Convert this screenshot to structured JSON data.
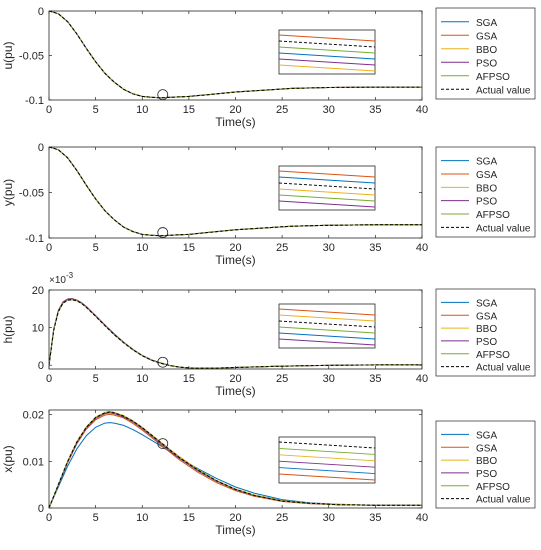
{
  "series_style": [
    {
      "name": "SGA",
      "color": "#0072BD",
      "dash": ""
    },
    {
      "name": "GSA",
      "color": "#D95319",
      "dash": ""
    },
    {
      "name": "BBO",
      "color": "#EDB120",
      "dash": ""
    },
    {
      "name": "PSO",
      "color": "#7E2F8E",
      "dash": ""
    },
    {
      "name": "AFPSO",
      "color": "#77AC30",
      "dash": ""
    },
    {
      "name": "Actual value",
      "color": "#000000",
      "dash": "3,2"
    }
  ],
  "chart_data": [
    {
      "type": "line",
      "ylabel": "u(pu)",
      "xlabel": "Time(s)",
      "xlim": [
        0,
        40
      ],
      "ylim": [
        -0.1,
        0
      ],
      "xticks": [
        "0",
        "5",
        "10",
        "15",
        "20",
        "25",
        "30",
        "35",
        "40"
      ],
      "yticks": [
        {
          "v": 0,
          "t": "0"
        },
        {
          "v": -0.05,
          "t": "-0.05"
        },
        {
          "v": -0.1,
          "t": "-0.1"
        }
      ],
      "exponent": "",
      "legend": [
        "SGA",
        "GSA",
        "BBO",
        "PSO",
        "AFPSO",
        "Actual value"
      ],
      "x": [
        0,
        1,
        2,
        3,
        4,
        5,
        6,
        7,
        8,
        9,
        10,
        11,
        12,
        13,
        14,
        15,
        17,
        20,
        23,
        26,
        30,
        35,
        40
      ],
      "series": [
        {
          "name": "SGA",
          "values": [
            0,
            -0.003,
            -0.012,
            -0.026,
            -0.042,
            -0.057,
            -0.07,
            -0.08,
            -0.088,
            -0.093,
            -0.096,
            -0.097,
            -0.0975,
            -0.097,
            -0.0965,
            -0.096,
            -0.094,
            -0.091,
            -0.089,
            -0.087,
            -0.086,
            -0.0855,
            -0.0855
          ]
        },
        {
          "name": "GSA",
          "values": [
            0,
            -0.003,
            -0.012,
            -0.026,
            -0.042,
            -0.057,
            -0.07,
            -0.08,
            -0.088,
            -0.093,
            -0.096,
            -0.097,
            -0.0975,
            -0.097,
            -0.0965,
            -0.096,
            -0.094,
            -0.091,
            -0.089,
            -0.087,
            -0.086,
            -0.0855,
            -0.0855
          ]
        },
        {
          "name": "BBO",
          "values": [
            0,
            -0.003,
            -0.012,
            -0.026,
            -0.042,
            -0.057,
            -0.07,
            -0.08,
            -0.088,
            -0.093,
            -0.096,
            -0.097,
            -0.0975,
            -0.097,
            -0.0965,
            -0.096,
            -0.094,
            -0.091,
            -0.089,
            -0.087,
            -0.086,
            -0.0855,
            -0.0855
          ]
        },
        {
          "name": "PSO",
          "values": [
            0,
            -0.003,
            -0.012,
            -0.026,
            -0.042,
            -0.057,
            -0.07,
            -0.08,
            -0.088,
            -0.093,
            -0.096,
            -0.097,
            -0.0975,
            -0.097,
            -0.0965,
            -0.096,
            -0.094,
            -0.091,
            -0.089,
            -0.087,
            -0.086,
            -0.0855,
            -0.0855
          ]
        },
        {
          "name": "AFPSO",
          "values": [
            0,
            -0.003,
            -0.012,
            -0.026,
            -0.042,
            -0.057,
            -0.07,
            -0.08,
            -0.088,
            -0.093,
            -0.096,
            -0.097,
            -0.0975,
            -0.097,
            -0.0965,
            -0.096,
            -0.094,
            -0.091,
            -0.089,
            -0.087,
            -0.086,
            -0.0855,
            -0.0855
          ]
        },
        {
          "name": "Actual value",
          "values": [
            0,
            -0.003,
            -0.012,
            -0.026,
            -0.042,
            -0.057,
            -0.07,
            -0.08,
            -0.088,
            -0.093,
            -0.096,
            -0.097,
            -0.0975,
            -0.097,
            -0.0965,
            -0.096,
            -0.094,
            -0.091,
            -0.089,
            -0.087,
            -0.086,
            -0.0855,
            -0.0855
          ]
        }
      ],
      "marker": {
        "x": 12.2,
        "y": -0.094
      },
      "inset_order": [
        "GSA",
        "Actual value",
        "AFPSO",
        "SGA",
        "PSO",
        "BBO"
      ]
    },
    {
      "type": "line",
      "ylabel": "y(pu)",
      "xlabel": "Time(s)",
      "xlim": [
        0,
        40
      ],
      "ylim": [
        -0.1,
        0
      ],
      "xticks": [
        "0",
        "5",
        "10",
        "15",
        "20",
        "25",
        "30",
        "35",
        "40"
      ],
      "yticks": [
        {
          "v": 0,
          "t": "0"
        },
        {
          "v": -0.05,
          "t": "-0.05"
        },
        {
          "v": -0.1,
          "t": "-0.1"
        }
      ],
      "exponent": "",
      "legend": [
        "SGA",
        "GSA",
        "BBO",
        "PSO",
        "AFPSO",
        "Actual value"
      ],
      "x": [
        0,
        1,
        2,
        3,
        4,
        5,
        6,
        7,
        8,
        9,
        10,
        11,
        12,
        13,
        14,
        15,
        17,
        20,
        23,
        26,
        30,
        35,
        40
      ],
      "series": [
        {
          "name": "SGA",
          "values": [
            0,
            -0.003,
            -0.012,
            -0.026,
            -0.042,
            -0.057,
            -0.07,
            -0.08,
            -0.088,
            -0.093,
            -0.096,
            -0.097,
            -0.0975,
            -0.097,
            -0.0965,
            -0.096,
            -0.094,
            -0.091,
            -0.089,
            -0.087,
            -0.086,
            -0.0855,
            -0.0855
          ]
        },
        {
          "name": "GSA",
          "values": [
            0,
            -0.003,
            -0.012,
            -0.026,
            -0.042,
            -0.057,
            -0.07,
            -0.08,
            -0.088,
            -0.093,
            -0.096,
            -0.097,
            -0.0975,
            -0.097,
            -0.0965,
            -0.096,
            -0.094,
            -0.091,
            -0.089,
            -0.087,
            -0.086,
            -0.0855,
            -0.0855
          ]
        },
        {
          "name": "BBO",
          "values": [
            0,
            -0.003,
            -0.012,
            -0.026,
            -0.042,
            -0.057,
            -0.07,
            -0.08,
            -0.088,
            -0.093,
            -0.096,
            -0.097,
            -0.0975,
            -0.097,
            -0.0965,
            -0.096,
            -0.094,
            -0.091,
            -0.089,
            -0.087,
            -0.086,
            -0.0855,
            -0.0855
          ]
        },
        {
          "name": "PSO",
          "values": [
            0,
            -0.003,
            -0.012,
            -0.026,
            -0.042,
            -0.057,
            -0.07,
            -0.08,
            -0.088,
            -0.093,
            -0.096,
            -0.097,
            -0.0975,
            -0.097,
            -0.0965,
            -0.096,
            -0.094,
            -0.091,
            -0.089,
            -0.087,
            -0.086,
            -0.0855,
            -0.0855
          ]
        },
        {
          "name": "AFPSO",
          "values": [
            0,
            -0.003,
            -0.012,
            -0.026,
            -0.042,
            -0.057,
            -0.07,
            -0.08,
            -0.088,
            -0.093,
            -0.096,
            -0.097,
            -0.0975,
            -0.097,
            -0.0965,
            -0.096,
            -0.094,
            -0.091,
            -0.089,
            -0.087,
            -0.086,
            -0.0855,
            -0.0855
          ]
        },
        {
          "name": "Actual value",
          "values": [
            0,
            -0.003,
            -0.012,
            -0.026,
            -0.042,
            -0.057,
            -0.07,
            -0.08,
            -0.088,
            -0.093,
            -0.096,
            -0.097,
            -0.0975,
            -0.097,
            -0.0965,
            -0.096,
            -0.094,
            -0.091,
            -0.089,
            -0.087,
            -0.086,
            -0.0855,
            -0.0855
          ]
        }
      ],
      "marker": {
        "x": 12.2,
        "y": -0.094
      },
      "inset_order": [
        "GSA",
        "SGA",
        "Actual value",
        "BBO",
        "AFPSO",
        "PSO"
      ]
    },
    {
      "type": "line",
      "ylabel": "h(pu)",
      "xlabel": "Time(s)",
      "xlim": [
        0,
        40
      ],
      "ylim": [
        -1,
        20
      ],
      "xticks": [
        "0",
        "5",
        "10",
        "15",
        "20",
        "25",
        "30",
        "35",
        "40"
      ],
      "yticks": [
        {
          "v": 0,
          "t": "0"
        },
        {
          "v": 10,
          "t": "10"
        },
        {
          "v": 20,
          "t": "20"
        }
      ],
      "exponent": "-3",
      "legend": [
        "SGA",
        "GSA",
        "BBO",
        "PSO",
        "AFPSO",
        "Actual value"
      ],
      "x": [
        0,
        0.5,
        1,
        1.5,
        2,
        2.5,
        3,
        3.5,
        4,
        5,
        6,
        7,
        8,
        9,
        10,
        11,
        12,
        13,
        14,
        15,
        16,
        18,
        20,
        24,
        28,
        32,
        36,
        40
      ],
      "series": [
        {
          "name": "SGA",
          "values": [
            0,
            9.5,
            14.5,
            16.8,
            17.6,
            17.7,
            17.3,
            16.6,
            15.6,
            13.2,
            10.7,
            8.3,
            6.1,
            4.2,
            2.6,
            1.4,
            0.6,
            -0.1,
            -0.5,
            -0.7,
            -0.8,
            -0.75,
            -0.6,
            -0.3,
            -0.1,
            0.05,
            0.1,
            0.1
          ]
        },
        {
          "name": "GSA",
          "values": [
            0,
            9.5,
            14.5,
            16.8,
            17.6,
            17.7,
            17.3,
            16.6,
            15.6,
            13.2,
            10.7,
            8.3,
            6.1,
            4.2,
            2.6,
            1.4,
            0.6,
            -0.1,
            -0.5,
            -0.7,
            -0.8,
            -0.75,
            -0.6,
            -0.3,
            -0.1,
            0.05,
            0.1,
            0.1
          ]
        },
        {
          "name": "BBO",
          "values": [
            0,
            9.5,
            14.5,
            16.8,
            17.6,
            17.7,
            17.3,
            16.6,
            15.6,
            13.2,
            10.7,
            8.3,
            6.1,
            4.2,
            2.6,
            1.4,
            0.6,
            -0.1,
            -0.5,
            -0.7,
            -0.8,
            -0.75,
            -0.6,
            -0.3,
            -0.1,
            0.05,
            0.1,
            0.1
          ]
        },
        {
          "name": "PSO",
          "values": [
            0,
            9.5,
            14.5,
            16.8,
            17.6,
            17.7,
            17.3,
            16.6,
            15.6,
            13.2,
            10.7,
            8.3,
            6.1,
            4.2,
            2.6,
            1.4,
            0.6,
            -0.1,
            -0.5,
            -0.7,
            -0.8,
            -0.75,
            -0.6,
            -0.3,
            -0.1,
            0.05,
            0.1,
            0.1
          ]
        },
        {
          "name": "AFPSO",
          "values": [
            0,
            9.3,
            14.2,
            16.5,
            17.3,
            17.4,
            17.1,
            16.4,
            15.4,
            13.0,
            10.5,
            8.1,
            6.0,
            4.1,
            2.5,
            1.3,
            0.5,
            -0.1,
            -0.5,
            -0.7,
            -0.8,
            -0.75,
            -0.6,
            -0.3,
            -0.1,
            0.05,
            0.1,
            0.1
          ]
        },
        {
          "name": "Actual value",
          "values": [
            0,
            9.3,
            14.2,
            16.5,
            17.3,
            17.4,
            17.1,
            16.4,
            15.4,
            13.0,
            10.5,
            8.1,
            6.0,
            4.1,
            2.5,
            1.3,
            0.5,
            -0.1,
            -0.5,
            -0.7,
            -0.8,
            -0.75,
            -0.6,
            -0.3,
            -0.1,
            0.05,
            0.1,
            0.1
          ]
        }
      ],
      "marker": {
        "x": 12.2,
        "y": 0.8
      },
      "inset_order": [
        "GSA",
        "BBO",
        "Actual value",
        "AFPSO",
        "SGA",
        "PSO"
      ]
    },
    {
      "type": "line",
      "ylabel": "x(pu)",
      "xlabel": "Time(s)",
      "xlim": [
        0,
        40
      ],
      "ylim": [
        0,
        0.021
      ],
      "xticks": [
        "0",
        "5",
        "10",
        "15",
        "20",
        "25",
        "30",
        "35",
        "40"
      ],
      "yticks": [
        {
          "v": 0,
          "t": "0"
        },
        {
          "v": 0.01,
          "t": "0.01"
        },
        {
          "v": 0.02,
          "t": "0.02"
        }
      ],
      "exponent": "",
      "legend": [
        "SGA",
        "GSA",
        "BBO",
        "PSO",
        "AFPSO",
        "Actual value"
      ],
      "x": [
        0,
        1,
        2,
        3,
        4,
        5,
        6,
        6.5,
        7,
        8,
        9,
        10,
        11,
        12,
        13,
        14,
        16,
        18,
        20,
        22,
        25,
        28,
        31,
        35,
        40
      ],
      "series": [
        {
          "name": "SGA",
          "values": [
            0,
            0.0045,
            0.009,
            0.0127,
            0.0155,
            0.0173,
            0.0182,
            0.0183,
            0.0182,
            0.0177,
            0.0168,
            0.0157,
            0.0145,
            0.0133,
            0.012,
            0.0107,
            0.0084,
            0.0063,
            0.0045,
            0.0032,
            0.0018,
            0.0011,
            0.0008,
            0.0006,
            0.0006
          ]
        },
        {
          "name": "GSA",
          "values": [
            0,
            0.0048,
            0.0097,
            0.0138,
            0.0169,
            0.0189,
            0.0199,
            0.0201,
            0.0199,
            0.0193,
            0.0181,
            0.0167,
            0.0151,
            0.0135,
            0.0119,
            0.0103,
            0.0076,
            0.0054,
            0.0037,
            0.0025,
            0.0014,
            0.0009,
            0.0007,
            0.0006,
            0.0006
          ]
        },
        {
          "name": "BBO",
          "values": [
            0,
            0.005,
            0.0101,
            0.0143,
            0.0174,
            0.0195,
            0.0205,
            0.0207,
            0.0205,
            0.0198,
            0.0187,
            0.0173,
            0.0157,
            0.0141,
            0.0125,
            0.011,
            0.0082,
            0.0059,
            0.0041,
            0.0028,
            0.0016,
            0.001,
            0.0008,
            0.0006,
            0.0006
          ]
        },
        {
          "name": "PSO",
          "values": [
            0,
            0.0049,
            0.0099,
            0.014,
            0.0171,
            0.0192,
            0.0202,
            0.0204,
            0.0202,
            0.0195,
            0.0184,
            0.017,
            0.0154,
            0.0138,
            0.0122,
            0.0106,
            0.0079,
            0.0057,
            0.0039,
            0.0027,
            0.0015,
            0.001,
            0.0007,
            0.0006,
            0.0006
          ]
        },
        {
          "name": "AFPSO",
          "values": [
            0,
            0.005,
            0.01,
            0.0142,
            0.0173,
            0.0194,
            0.0204,
            0.0206,
            0.0204,
            0.0197,
            0.0186,
            0.0172,
            0.0156,
            0.014,
            0.0124,
            0.0108,
            0.0081,
            0.0058,
            0.004,
            0.0027,
            0.0015,
            0.001,
            0.0007,
            0.0006,
            0.0006
          ]
        },
        {
          "name": "Actual value",
          "values": [
            0,
            0.005,
            0.01,
            0.0142,
            0.0173,
            0.0194,
            0.0204,
            0.0206,
            0.0204,
            0.0197,
            0.0186,
            0.0172,
            0.0156,
            0.014,
            0.0124,
            0.0108,
            0.0081,
            0.0058,
            0.004,
            0.0027,
            0.0015,
            0.001,
            0.0007,
            0.0006,
            0.0006
          ]
        }
      ],
      "marker": {
        "x": 12.2,
        "y": 0.0138
      },
      "inset_order": [
        "Actual value",
        "AFPSO",
        "BBO",
        "PSO",
        "SGA",
        "GSA"
      ]
    }
  ]
}
